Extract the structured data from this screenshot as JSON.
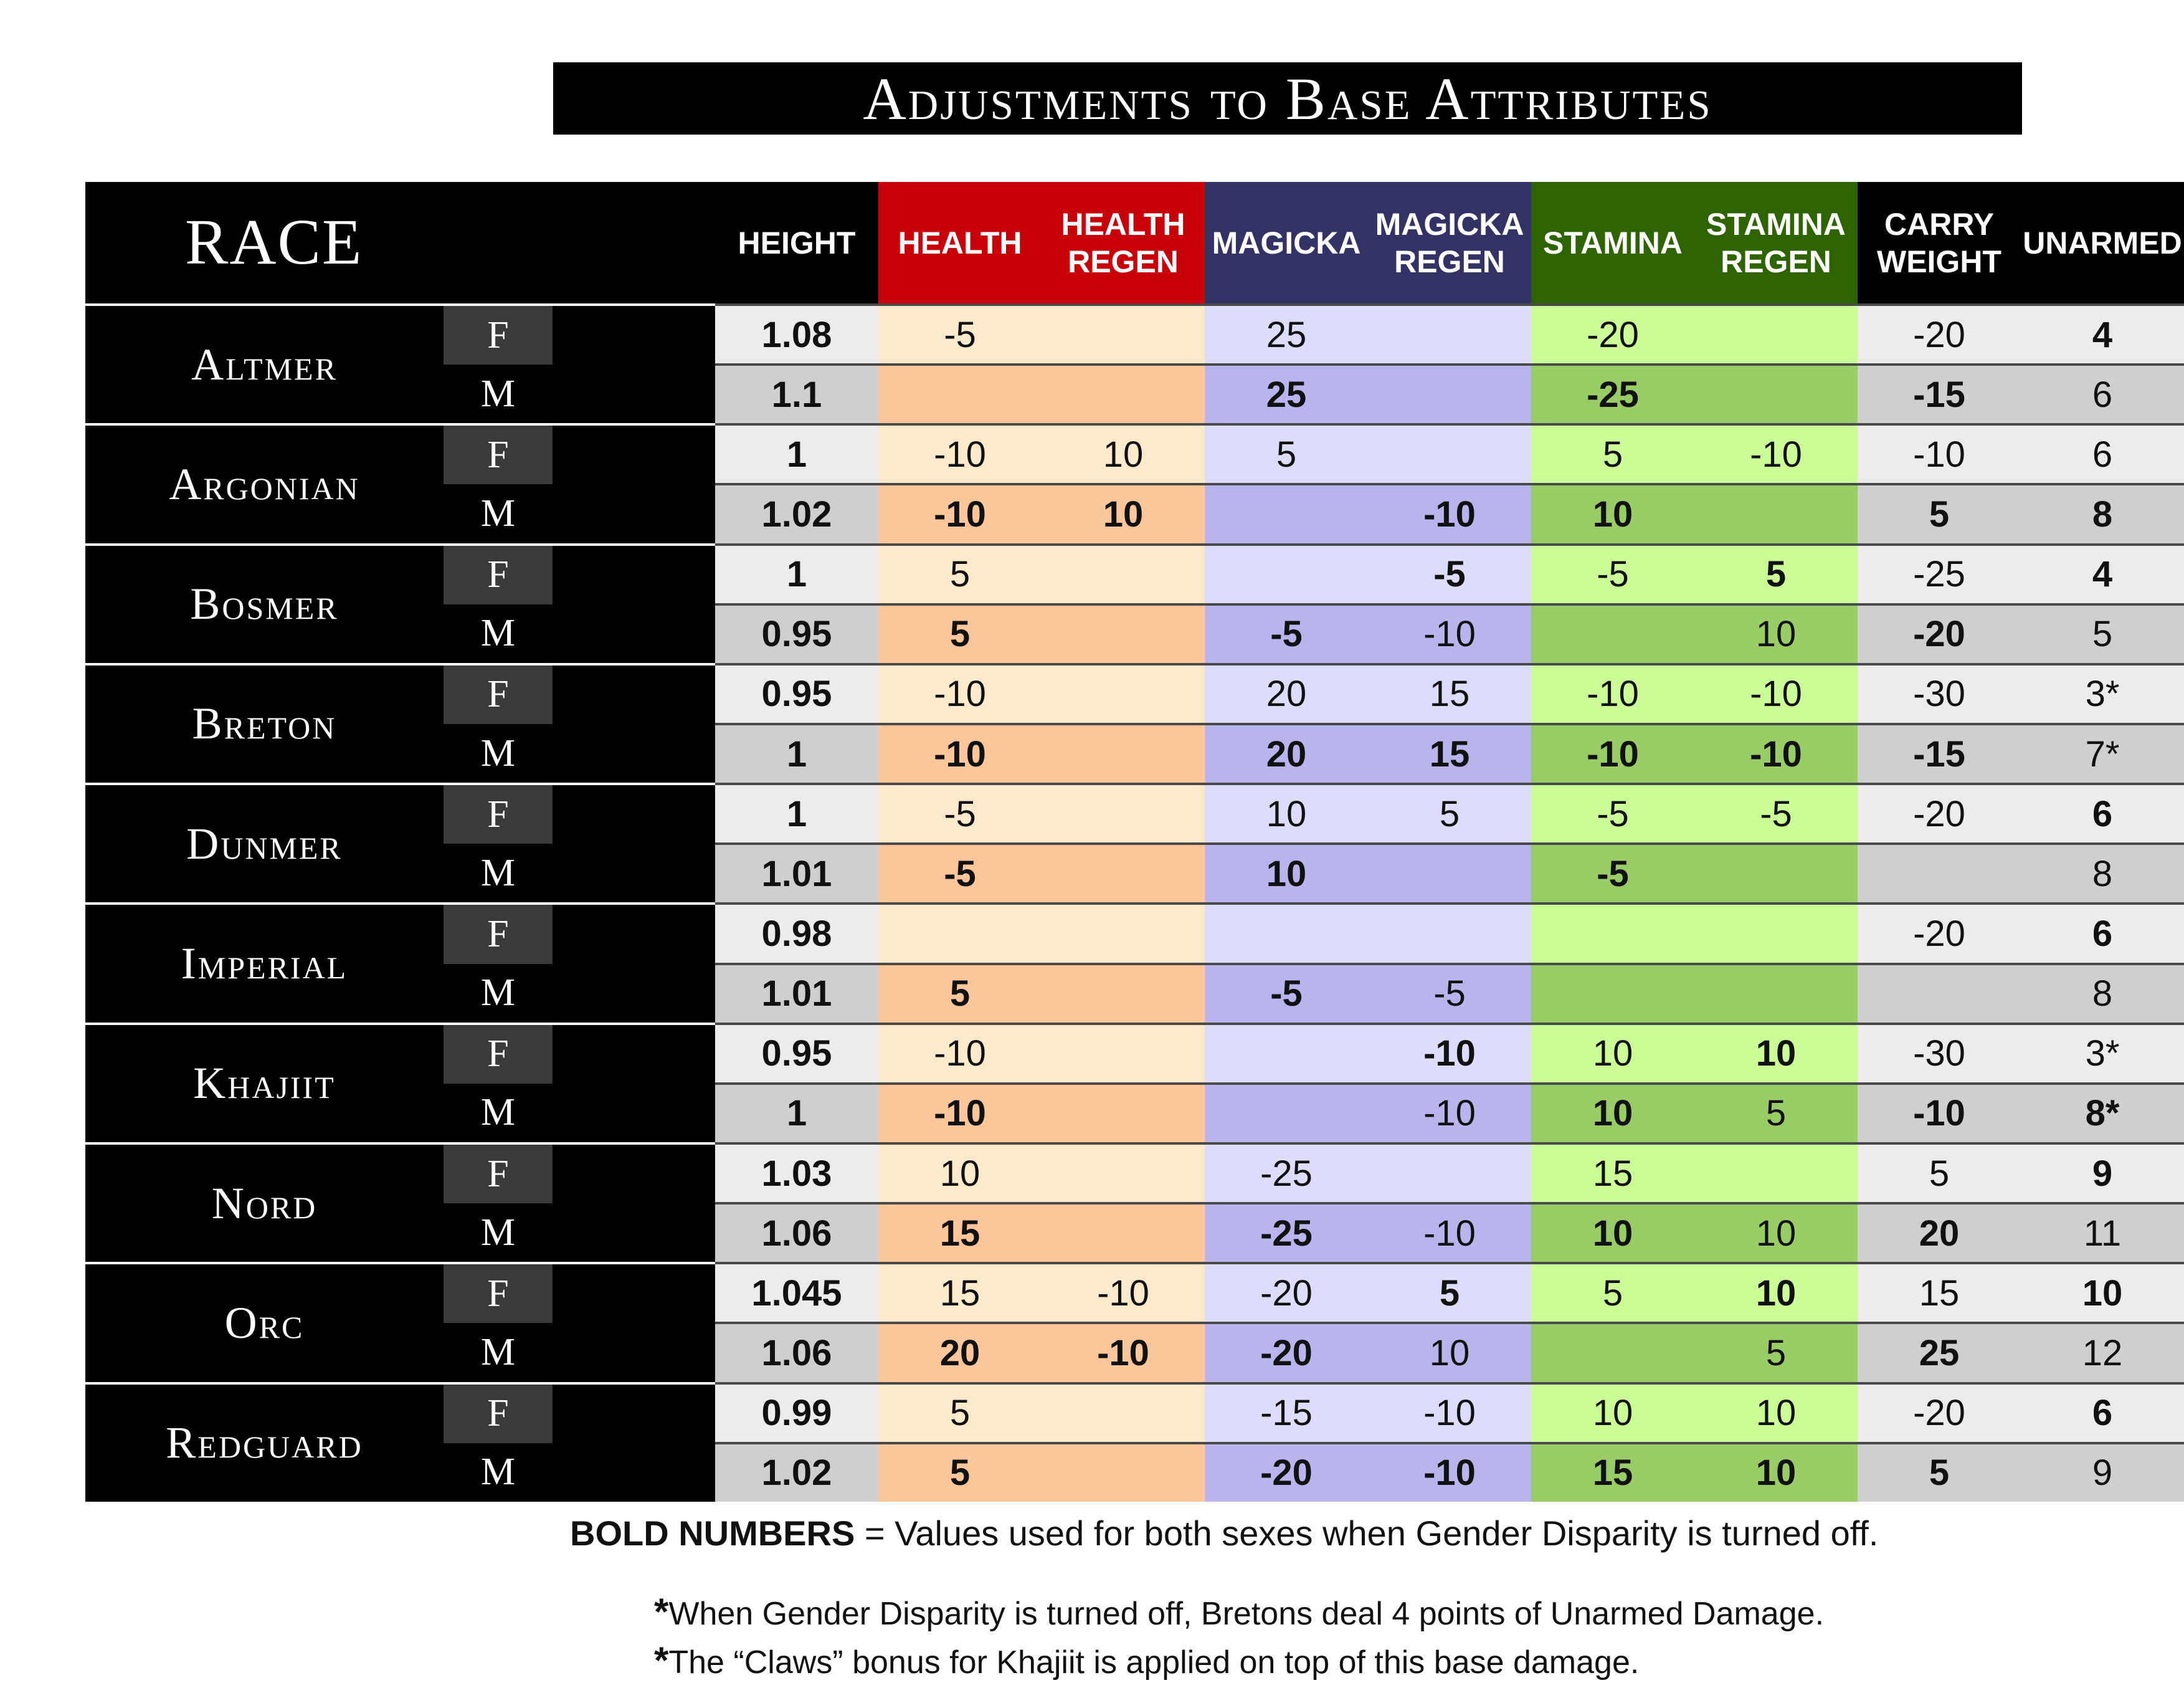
{
  "title": "Adjustments to Base Attributes",
  "headers": {
    "race": "RACE",
    "columns": [
      "HEIGHT",
      "HEALTH",
      "HEALTH\nREGEN",
      "MAGICKA",
      "MAGICKA\nREGEN",
      "STAMINA",
      "STAMINA\nREGEN",
      "CARRY\nWEIGHT",
      "UNARMED"
    ]
  },
  "colors": {
    "header_black": "#000000",
    "health_header": "#c8000a",
    "magicka_header": "#323264",
    "stamina_header": "#2e6400",
    "neutral_f": "#ececec",
    "neutral_m": "#cfcfcf",
    "health_f": "#fde9cb",
    "health_m": "#fbc69a",
    "magicka_f": "#dcdcfc",
    "magicka_m": "#b8b4ec",
    "stamina_f": "#ccfc98",
    "stamina_m": "#99cc66"
  },
  "races": [
    {
      "name": "Altmer",
      "rows": [
        {
          "sex": "F",
          "values": [
            "1.08",
            "-5",
            "",
            "25",
            "",
            "-20",
            "",
            "-20",
            "4"
          ],
          "bold": [
            1,
            0,
            0,
            0,
            0,
            0,
            0,
            0,
            1
          ]
        },
        {
          "sex": "M",
          "values": [
            "1.1",
            "",
            "",
            "25",
            "",
            "-25",
            "",
            "-15",
            "6"
          ],
          "bold": [
            1,
            0,
            0,
            1,
            0,
            1,
            0,
            1,
            0
          ]
        }
      ]
    },
    {
      "name": "Argonian",
      "rows": [
        {
          "sex": "F",
          "values": [
            "1",
            "-10",
            "10",
            "5",
            "",
            "5",
            "-10",
            "-10",
            "6"
          ],
          "bold": [
            1,
            0,
            0,
            0,
            0,
            0,
            0,
            0,
            0
          ]
        },
        {
          "sex": "M",
          "values": [
            "1.02",
            "-10",
            "10",
            "",
            "-10",
            "10",
            "",
            "5",
            "8"
          ],
          "bold": [
            1,
            1,
            1,
            0,
            1,
            1,
            0,
            1,
            1
          ]
        }
      ]
    },
    {
      "name": "Bosmer",
      "rows": [
        {
          "sex": "F",
          "values": [
            "1",
            "5",
            "",
            "",
            "-5",
            "-5",
            "5",
            "-25",
            "4"
          ],
          "bold": [
            1,
            0,
            0,
            0,
            1,
            0,
            1,
            0,
            1
          ]
        },
        {
          "sex": "M",
          "values": [
            "0.95",
            "5",
            "",
            "-5",
            "-10",
            "",
            "10",
            "-20",
            "5"
          ],
          "bold": [
            1,
            1,
            0,
            1,
            0,
            0,
            0,
            1,
            0
          ]
        }
      ]
    },
    {
      "name": "Breton",
      "rows": [
        {
          "sex": "F",
          "values": [
            "0.95",
            "-10",
            "",
            "20",
            "15",
            "-10",
            "-10",
            "-30",
            "3*"
          ],
          "bold": [
            1,
            0,
            0,
            0,
            0,
            0,
            0,
            0,
            0
          ]
        },
        {
          "sex": "M",
          "values": [
            "1",
            "-10",
            "",
            "20",
            "15",
            "-10",
            "-10",
            "-15",
            "7*"
          ],
          "bold": [
            1,
            1,
            0,
            1,
            1,
            1,
            1,
            1,
            0
          ]
        }
      ]
    },
    {
      "name": "Dunmer",
      "rows": [
        {
          "sex": "F",
          "values": [
            "1",
            "-5",
            "",
            "10",
            "5",
            "-5",
            "-5",
            "-20",
            "6"
          ],
          "bold": [
            1,
            0,
            0,
            0,
            0,
            0,
            0,
            0,
            1
          ]
        },
        {
          "sex": "M",
          "values": [
            "1.01",
            "-5",
            "",
            "10",
            "",
            "-5",
            "",
            "",
            "8"
          ],
          "bold": [
            1,
            1,
            0,
            1,
            0,
            1,
            0,
            0,
            0
          ]
        }
      ]
    },
    {
      "name": "Imperial",
      "rows": [
        {
          "sex": "F",
          "values": [
            "0.98",
            "",
            "",
            "",
            "",
            "",
            "",
            "-20",
            "6"
          ],
          "bold": [
            1,
            0,
            0,
            0,
            0,
            0,
            0,
            0,
            1
          ]
        },
        {
          "sex": "M",
          "values": [
            "1.01",
            "5",
            "",
            "-5",
            "-5",
            "",
            "",
            "",
            "8"
          ],
          "bold": [
            1,
            1,
            0,
            1,
            0,
            0,
            0,
            0,
            0
          ]
        }
      ]
    },
    {
      "name": "Khajiit",
      "rows": [
        {
          "sex": "F",
          "values": [
            "0.95",
            "-10",
            "",
            "",
            "-10",
            "10",
            "10",
            "-30",
            "3*"
          ],
          "bold": [
            1,
            0,
            0,
            0,
            1,
            0,
            1,
            0,
            0
          ]
        },
        {
          "sex": "M",
          "values": [
            "1",
            "-10",
            "",
            "",
            "-10",
            "10",
            "5",
            "-10",
            "8*"
          ],
          "bold": [
            1,
            1,
            0,
            0,
            0,
            1,
            0,
            1,
            1
          ]
        }
      ]
    },
    {
      "name": "Nord",
      "rows": [
        {
          "sex": "F",
          "values": [
            "1.03",
            "10",
            "",
            "-25",
            "",
            "15",
            "",
            "5",
            "9"
          ],
          "bold": [
            1,
            0,
            0,
            0,
            0,
            0,
            0,
            0,
            1
          ]
        },
        {
          "sex": "M",
          "values": [
            "1.06",
            "15",
            "",
            "-25",
            "-10",
            "10",
            "10",
            "20",
            "11"
          ],
          "bold": [
            1,
            1,
            0,
            1,
            0,
            1,
            0,
            1,
            0
          ]
        }
      ]
    },
    {
      "name": "Orc",
      "rows": [
        {
          "sex": "F",
          "values": [
            "1.045",
            "15",
            "-10",
            "-20",
            "5",
            "5",
            "10",
            "15",
            "10"
          ],
          "bold": [
            1,
            0,
            0,
            0,
            1,
            0,
            1,
            0,
            1
          ]
        },
        {
          "sex": "M",
          "values": [
            "1.06",
            "20",
            "-10",
            "-20",
            "10",
            "",
            "5",
            "25",
            "12"
          ],
          "bold": [
            1,
            1,
            1,
            1,
            0,
            0,
            0,
            1,
            0
          ]
        }
      ]
    },
    {
      "name": "Redguard",
      "rows": [
        {
          "sex": "F",
          "values": [
            "0.99",
            "5",
            "",
            "-15",
            "-10",
            "10",
            "10",
            "-20",
            "6"
          ],
          "bold": [
            1,
            0,
            0,
            0,
            0,
            0,
            0,
            0,
            1
          ]
        },
        {
          "sex": "M",
          "values": [
            "1.02",
            "5",
            "",
            "-20",
            "-10",
            "15",
            "10",
            "5",
            "9"
          ],
          "bold": [
            1,
            1,
            0,
            1,
            1,
            1,
            1,
            1,
            0
          ]
        }
      ]
    }
  ],
  "legend": {
    "bold_label": "BOLD NUMBERS",
    "bold_text": " = Values used for both sexes when Gender Disparity is turned off.",
    "note1_star": "*",
    "note1": "When Gender Disparity is turned off, Bretons deal 4 points of Unarmed Damage.",
    "note2_star": "*",
    "note2": "The “Claws” bonus for Khajiit is applied on top of this base damage."
  }
}
